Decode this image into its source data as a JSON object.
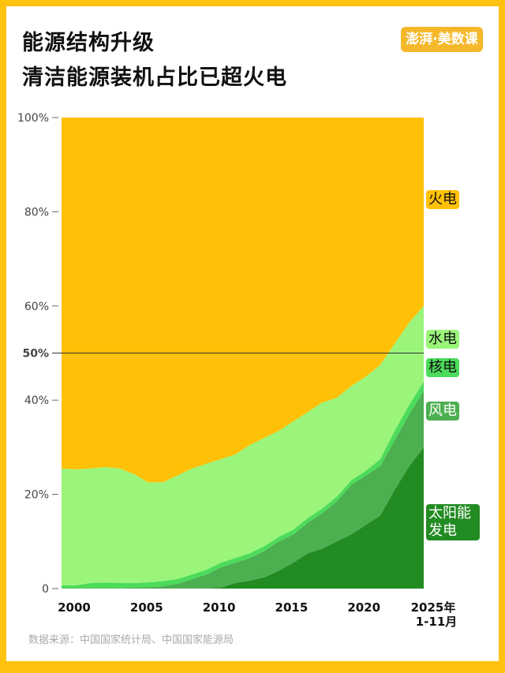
{
  "header": {
    "title_line1": "能源结构升级",
    "title_line2": "清洁能源装机占比已超火电",
    "logo_text": "澎湃·美数课"
  },
  "source": "数据来源：中国国家统计局、中国国家能源局",
  "chart_data": {
    "type": "area",
    "stacked": true,
    "title": "能源结构升级 清洁能源装机占比已超火电",
    "xlabel": "",
    "ylabel": "",
    "ylim": [
      0,
      100
    ],
    "y_ticks": [
      "0",
      "20%",
      "40%",
      "60%",
      "80%",
      "100%"
    ],
    "y_tick_values": [
      0,
      20,
      40,
      60,
      80,
      100
    ],
    "reference_line": {
      "value": 50,
      "label": "50%"
    },
    "x_ticks": [
      "2000",
      "2005",
      "2010",
      "2015",
      "2020",
      "2025年",
      "1-11月"
    ],
    "x": [
      2000,
      2001,
      2002,
      2003,
      2004,
      2005,
      2006,
      2007,
      2008,
      2009,
      2010,
      2011,
      2012,
      2013,
      2014,
      2015,
      2016,
      2017,
      2018,
      2019,
      2020,
      2021,
      2022,
      2023,
      2024,
      2025
    ],
    "grid": false,
    "legend": "right, inline labels",
    "series": [
      {
        "name": "太阳能发电",
        "color": "#228B22",
        "text_color": "#ffffff",
        "values": [
          0,
          0,
          0,
          0,
          0,
          0,
          0,
          0,
          0,
          0,
          0,
          0.2,
          1.2,
          1.7,
          2.4,
          3.8,
          5.5,
          7.5,
          8.5,
          10,
          11.5,
          13.5,
          15.5,
          21,
          26,
          30
        ]
      },
      {
        "name": "风电",
        "color": "#4CAF50",
        "text_color": "#ffffff",
        "values": [
          0.1,
          0.1,
          0.1,
          0.1,
          0.1,
          0.2,
          0.3,
          0.5,
          1,
          2,
          3,
          4.3,
          4.3,
          4.8,
          5.6,
          6.2,
          6,
          6.5,
          7.5,
          8.5,
          10.5,
          10.5,
          10.5,
          10.5,
          11,
          12
        ]
      },
      {
        "name": "核电",
        "color": "#4CDB5A",
        "text_color": "#111111",
        "values": [
          0.6,
          0.6,
          1.1,
          1.2,
          1.1,
          1.0,
          1.0,
          1.1,
          1.0,
          1.0,
          1.0,
          1.0,
          1.0,
          1.0,
          1.0,
          1.0,
          1.0,
          1.0,
          1.0,
          1.0,
          1.0,
          1.0,
          1.5,
          2,
          2,
          2
        ]
      },
      {
        "name": "水电",
        "color": "#9AF57A",
        "text_color": "#111111",
        "values": [
          24.8,
          24.6,
          24.3,
          24.5,
          24.3,
          23.1,
          21.2,
          21.0,
          22,
          22.5,
          22.5,
          22,
          22,
          23,
          23,
          22.5,
          23,
          22.5,
          22.5,
          21,
          20,
          20,
          20,
          18.5,
          17.5,
          16
        ]
      },
      {
        "name": "火电",
        "color": "#FFC107",
        "text_color": "#111111",
        "values": [
          74.5,
          74.7,
          74.5,
          74.2,
          74.5,
          75.7,
          77.5,
          77.4,
          76,
          74.5,
          73.5,
          72.5,
          71.5,
          69.5,
          68,
          66.5,
          64.5,
          62.5,
          60.5,
          59.5,
          57,
          55,
          52.5,
          48,
          43.5,
          40
        ]
      }
    ]
  }
}
